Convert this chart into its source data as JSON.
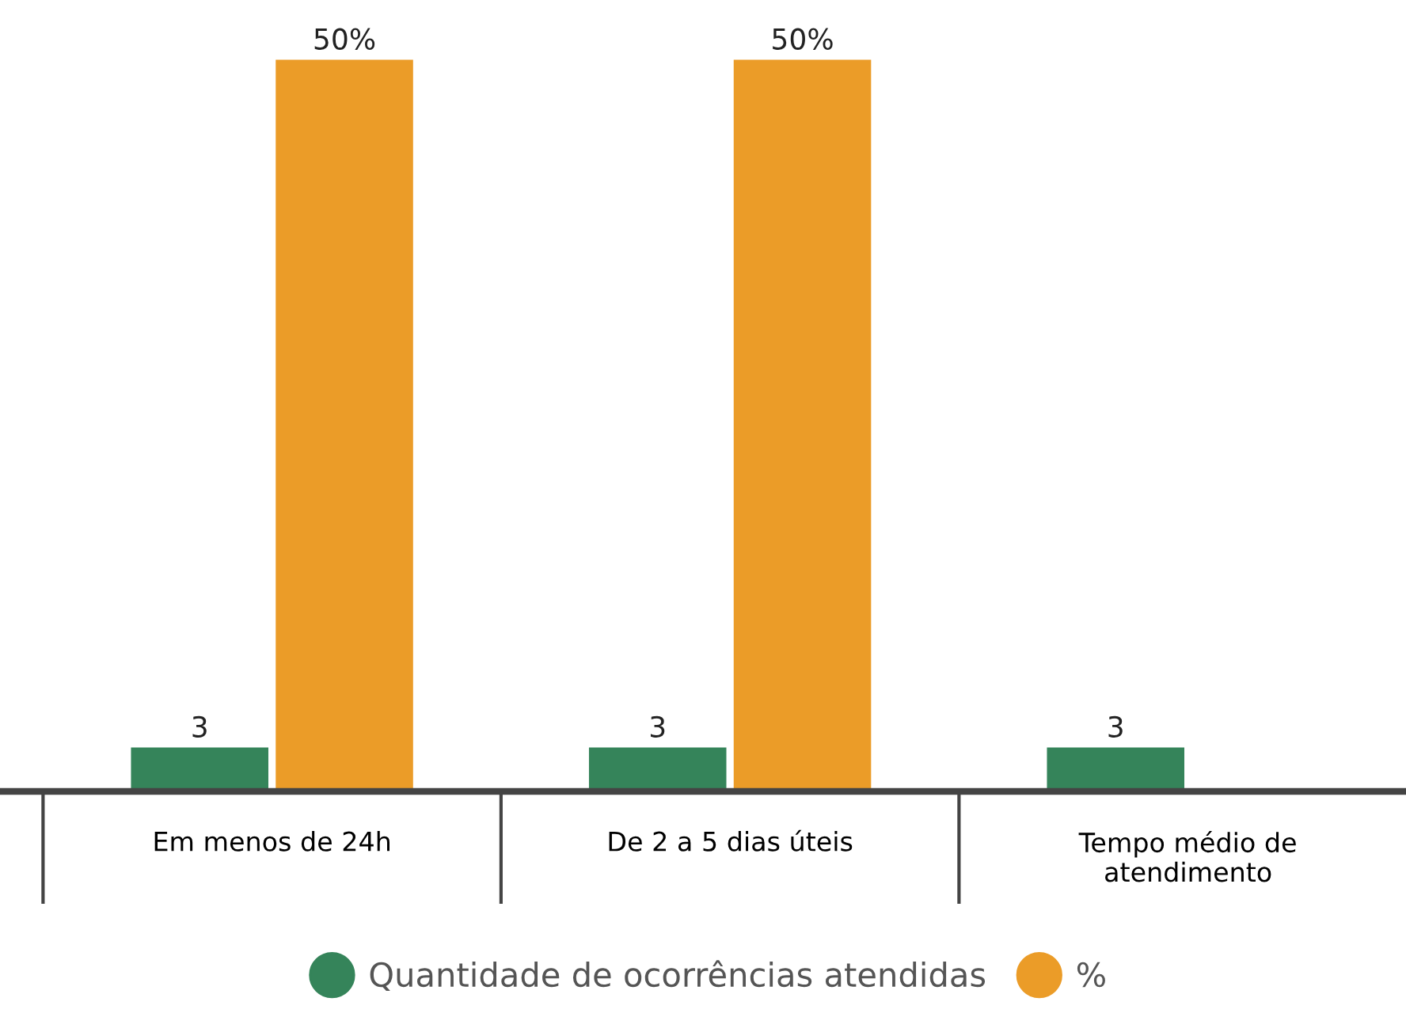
{
  "chart_data": {
    "type": "bar",
    "categories": [
      "Em menos de 24h",
      "De 2 a 5 dias úteis",
      "Tempo médio de\natendimento"
    ],
    "series": [
      {
        "name": "Quantidade de ocorrências atendidas",
        "color": "#35845a",
        "values": [
          3,
          3,
          3
        ],
        "value_labels": [
          "3",
          "3",
          "3"
        ]
      },
      {
        "name": "%",
        "color": "#eb9c28",
        "values": [
          50,
          50,
          null
        ],
        "value_labels": [
          "50%",
          "50%",
          null
        ]
      }
    ],
    "legend": "bottom",
    "marker": "circle",
    "grid": false
  }
}
